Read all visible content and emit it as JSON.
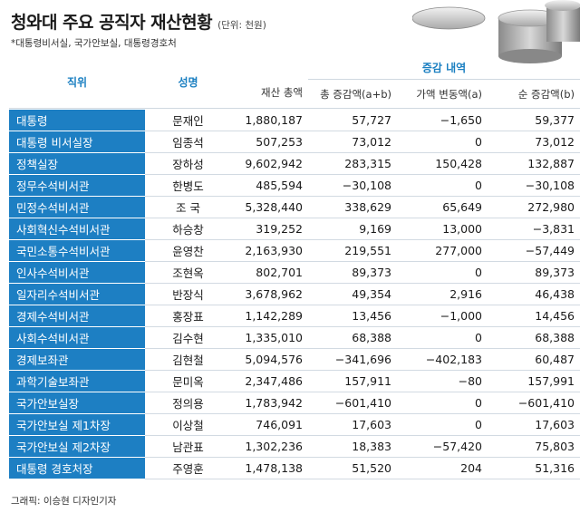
{
  "title": "청와대 주요 공직자 재산현황",
  "unit": "(단위: 천원)",
  "note": "*대통령비서실, 국가안보실, 대통령경호처",
  "headers": {
    "position": "직위",
    "name": "성명",
    "group": "증감 내역",
    "total": "재산 총액",
    "total_change": "총 증감액(a+b)",
    "price_change": "가액 변동액(a)",
    "net_change": "순 증감액(b)"
  },
  "rows": [
    {
      "position": "대통령",
      "name": "문재인",
      "total": "1,880,187",
      "total_change": "57,727",
      "price_change": "−1,650",
      "net_change": "59,377"
    },
    {
      "position": "대통령 비서실장",
      "name": "임종석",
      "total": "507,253",
      "total_change": "73,012",
      "price_change": "0",
      "net_change": "73,012"
    },
    {
      "position": "정책실장",
      "name": "장하성",
      "total": "9,602,942",
      "total_change": "283,315",
      "price_change": "150,428",
      "net_change": "132,887"
    },
    {
      "position": "정무수석비서관",
      "name": "한병도",
      "total": "485,594",
      "total_change": "−30,108",
      "price_change": "0",
      "net_change": "−30,108"
    },
    {
      "position": "민정수석비서관",
      "name": "조 국",
      "total": "5,328,440",
      "total_change": "338,629",
      "price_change": "65,649",
      "net_change": "272,980"
    },
    {
      "position": "사회혁신수석비서관",
      "name": "하승창",
      "total": "319,252",
      "total_change": "9,169",
      "price_change": "13,000",
      "net_change": "−3,831"
    },
    {
      "position": "국민소통수석비서관",
      "name": "윤영찬",
      "total": "2,163,930",
      "total_change": "219,551",
      "price_change": "277,000",
      "net_change": "−57,449"
    },
    {
      "position": "인사수석비서관",
      "name": "조현옥",
      "total": "802,701",
      "total_change": "89,373",
      "price_change": "0",
      "net_change": "89,373"
    },
    {
      "position": "일자리수석비서관",
      "name": "반장식",
      "total": "3,678,962",
      "total_change": "49,354",
      "price_change": "2,916",
      "net_change": "46,438"
    },
    {
      "position": "경제수석비서관",
      "name": "홍장표",
      "total": "1,142,289",
      "total_change": "13,456",
      "price_change": "−1,000",
      "net_change": "14,456"
    },
    {
      "position": "사회수석비서관",
      "name": "김수현",
      "total": "1,335,010",
      "total_change": "68,388",
      "price_change": "0",
      "net_change": "68,388"
    },
    {
      "position": "경제보좌관",
      "name": "김현철",
      "total": "5,094,576",
      "total_change": "−341,696",
      "price_change": "−402,183",
      "net_change": "60,487"
    },
    {
      "position": "과학기술보좌관",
      "name": "문미옥",
      "total": "2,347,486",
      "total_change": "157,911",
      "price_change": "−80",
      "net_change": "157,991"
    },
    {
      "position": "국가안보실장",
      "name": "정의용",
      "total": "1,783,942",
      "total_change": "−601,410",
      "price_change": "0",
      "net_change": "−601,410"
    },
    {
      "position": "국가안보실 제1차장",
      "name": "이상철",
      "total": "746,091",
      "total_change": "17,603",
      "price_change": "0",
      "net_change": "17,603"
    },
    {
      "position": "국가안보실 제2차장",
      "name": "남관표",
      "total": "1,302,236",
      "total_change": "18,383",
      "price_change": "−57,420",
      "net_change": "75,803"
    },
    {
      "position": "대통령 경호처장",
      "name": "주영훈",
      "total": "1,478,138",
      "total_change": "51,520",
      "price_change": "204",
      "net_change": "51,316"
    }
  ],
  "credit": "그래픽: 이승현 디자인기자",
  "colors": {
    "accent": "#1d7fc3",
    "header_text": "#1a7fc1"
  }
}
